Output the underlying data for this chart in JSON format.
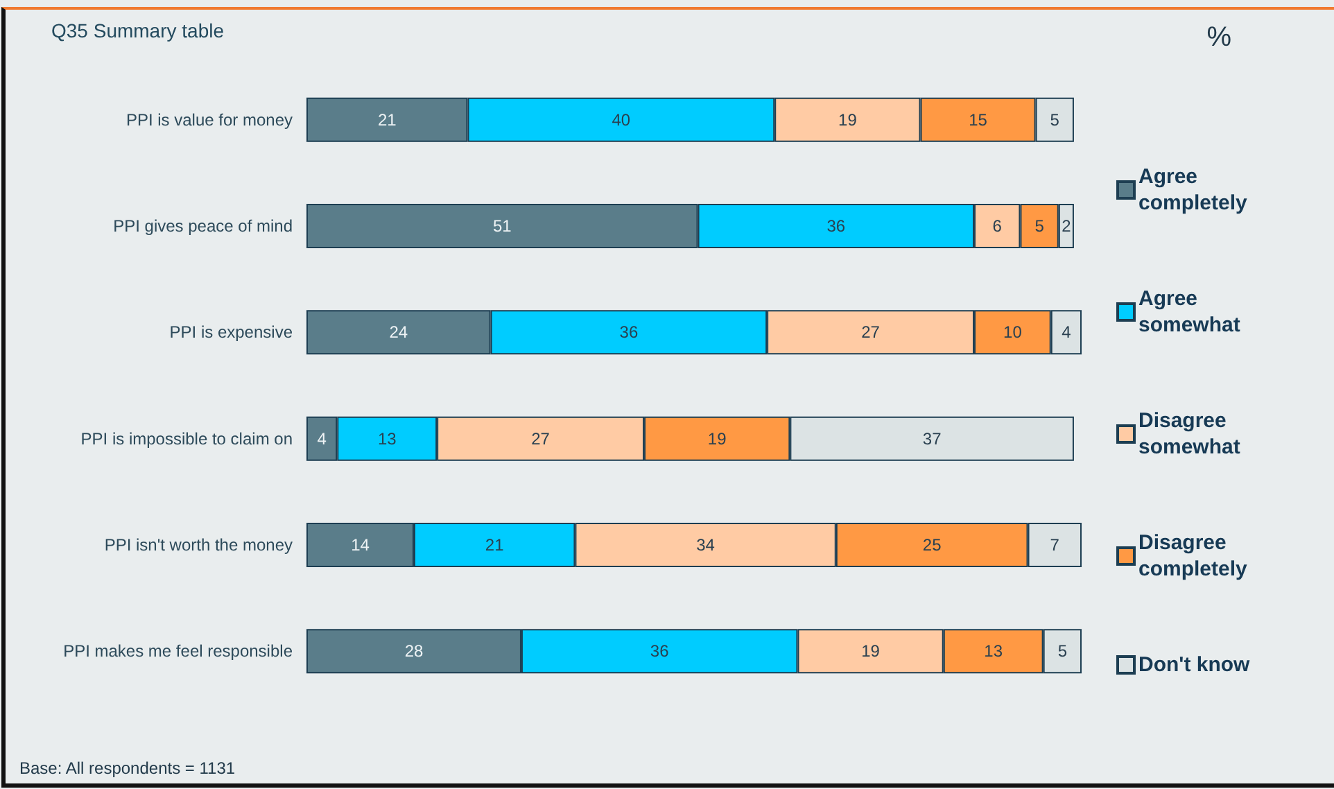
{
  "chart_data": {
    "type": "bar",
    "orientation": "horizontal",
    "stacked": true,
    "title": "Q35 Summary table",
    "annotations": [
      "%",
      "Base: All respondents = 1131"
    ],
    "categories": [
      "PPI is value for money",
      "PPI gives peace of mind",
      "PPI is expensive",
      "PPI is impossible to claim on",
      "PPI isn't worth the money",
      "PPI makes me feel responsible"
    ],
    "series": [
      {
        "name": "Agree completely",
        "color": "#5a7d8a",
        "values": [
          21,
          51,
          24,
          4,
          14,
          28
        ]
      },
      {
        "name": "Agree somewhat",
        "color": "#00ccff",
        "values": [
          40,
          36,
          36,
          13,
          21,
          36
        ]
      },
      {
        "name": "Disagree somewhat",
        "color": "#ffcba4",
        "values": [
          19,
          6,
          27,
          27,
          34,
          19
        ]
      },
      {
        "name": "Disagree completely",
        "color": "#ff9944",
        "values": [
          15,
          5,
          10,
          19,
          25,
          13
        ]
      },
      {
        "name": "Don't know",
        "color": "#dce3e4",
        "values": [
          5,
          2,
          4,
          37,
          7,
          5
        ]
      }
    ],
    "data_labels": true,
    "legend": "right",
    "tick_labels": "y"
  }
}
